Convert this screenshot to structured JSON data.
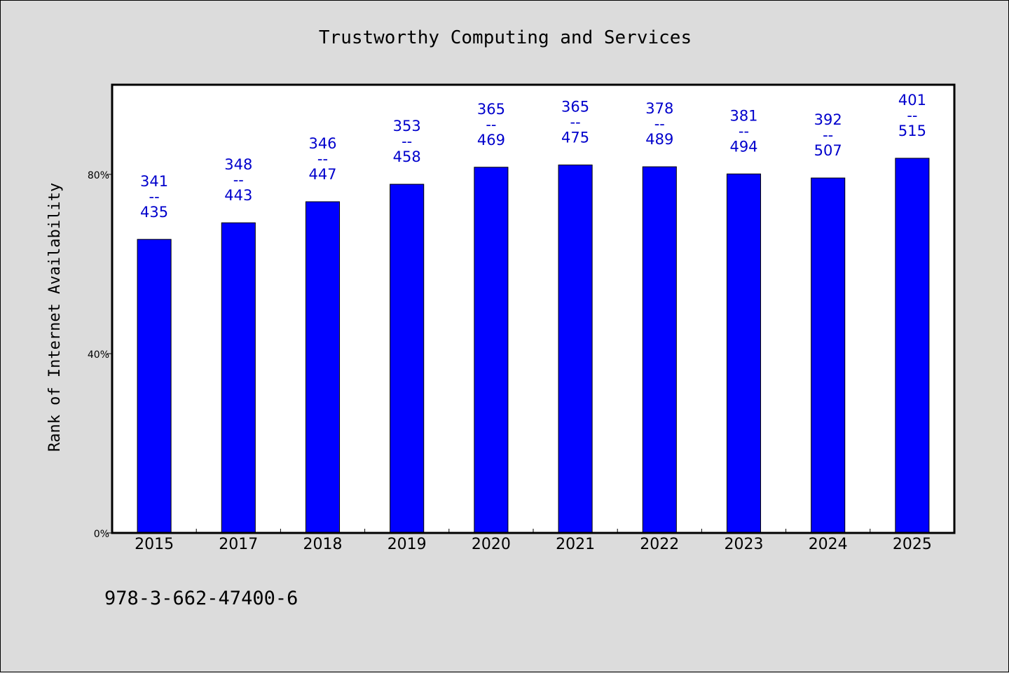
{
  "chart_data": {
    "type": "bar",
    "title": "Trustworthy Computing and Services",
    "ylabel": "Rank of Internet Availability",
    "xlabel": "",
    "categories": [
      "2015",
      "2017",
      "2018",
      "2019",
      "2020",
      "2021",
      "2022",
      "2023",
      "2024",
      "2025"
    ],
    "values": [
      65.5,
      69.2,
      73.9,
      77.8,
      81.6,
      82.1,
      81.7,
      80.1,
      79.2,
      83.6
    ],
    "labels": [
      {
        "top": "341",
        "mid": "--",
        "bottom": "435"
      },
      {
        "top": "348",
        "mid": "--",
        "bottom": "443"
      },
      {
        "top": "346",
        "mid": "--",
        "bottom": "447"
      },
      {
        "top": "353",
        "mid": "--",
        "bottom": "458"
      },
      {
        "top": "365",
        "mid": "--",
        "bottom": "469"
      },
      {
        "top": "365",
        "mid": "--",
        "bottom": "475"
      },
      {
        "top": "378",
        "mid": "--",
        "bottom": "489"
      },
      {
        "top": "381",
        "mid": "--",
        "bottom": "494"
      },
      {
        "top": "392",
        "mid": "--",
        "bottom": "507"
      },
      {
        "top": "401",
        "mid": "--",
        "bottom": "515"
      }
    ],
    "yticks": [
      0,
      40,
      80
    ],
    "ytick_labels": [
      "0%",
      "40%",
      "80%"
    ],
    "ylim": [
      0,
      100
    ],
    "grid": false,
    "colors": {
      "bar": "#0000ff",
      "label": "#0000cc",
      "background": "#dcdcdc",
      "plot_background": "#ffffff"
    }
  },
  "footer": {
    "isbn": "978-3-662-47400-6"
  }
}
